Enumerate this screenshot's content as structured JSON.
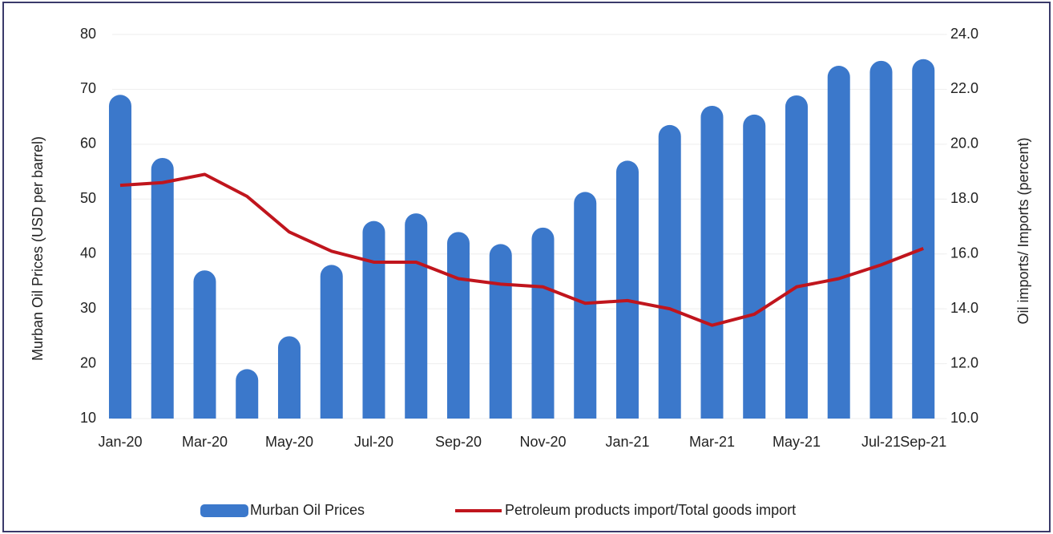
{
  "chart_data": {
    "type": "bar",
    "categories": [
      "Jan-20",
      null,
      "Mar-20",
      null,
      "May-20",
      null,
      "Jul-20",
      null,
      "Sep-20",
      null,
      "Nov-20",
      null,
      "Jan-21",
      null,
      "Mar-21",
      null,
      "May-21",
      null,
      "Jul-21",
      "Sep-21"
    ],
    "series": [
      {
        "name": "Murban Oil Prices",
        "type": "bar",
        "color": "#3b78cb",
        "values": [
          69,
          57.5,
          37,
          19,
          25,
          38,
          46,
          47.4,
          44,
          41.8,
          44.8,
          51.3,
          57,
          63.5,
          67,
          65.4,
          68.9,
          74.3,
          75.2,
          75.5
        ]
      },
      {
        "name": "Petroleum products import/Total goods import",
        "type": "line",
        "axis": "y2",
        "color": "#c0151d",
        "values": [
          18.5,
          18.6,
          18.9,
          18.1,
          16.8,
          16.1,
          15.7,
          15.7,
          15.1,
          14.9,
          14.8,
          14.2,
          14.3,
          14.0,
          13.4,
          13.8,
          14.8,
          15.1,
          15.6,
          16.2
        ]
      }
    ],
    "y_label": "Murban Oil Prices  (USD per barrel)",
    "y2_label": "Oil imports/ Imports (percent)",
    "ylim": [
      10,
      80
    ],
    "yticks": [
      10,
      20,
      30,
      40,
      50,
      60,
      70,
      80
    ],
    "y2lim": [
      10,
      24
    ],
    "y2ticks": [
      {
        "value": 10,
        "label": "10.0"
      },
      {
        "value": 12,
        "label": "12.0"
      },
      {
        "value": 14,
        "label": "14.0"
      },
      {
        "value": 16,
        "label": "16.0"
      },
      {
        "value": 18,
        "label": "18.0"
      },
      {
        "value": 20,
        "label": "20.0"
      },
      {
        "value": 22,
        "label": "22.0"
      },
      {
        "value": 24,
        "label": "24.0"
      }
    ],
    "grid": true,
    "legend": "bottom"
  }
}
